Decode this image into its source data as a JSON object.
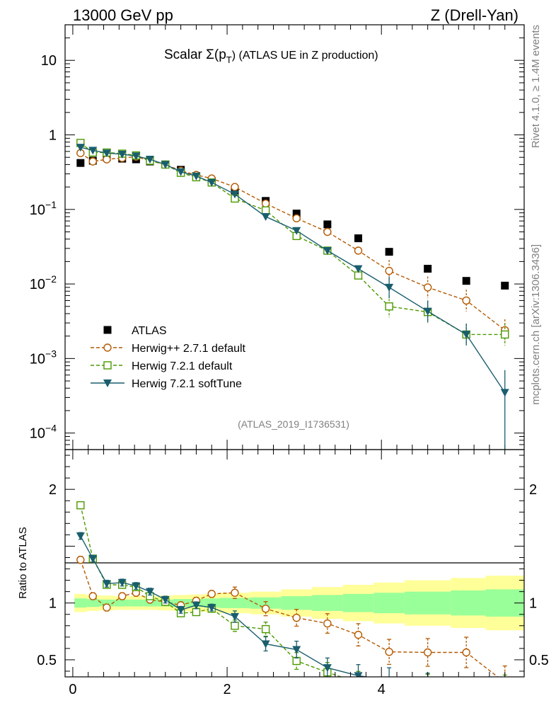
{
  "header": {
    "left": "13000 GeV pp",
    "right": "Z (Drell-Yan)"
  },
  "side_labels": {
    "rivet": "Rivet 4.1.0, ≥ 1.4M events",
    "mcplots": "mcplots.cern.ch [arXiv:1306.3436]"
  },
  "colors": {
    "atlas": "#000000",
    "herwigpp": "#b35900",
    "herwig721": "#4c9900",
    "softtune": "#1a5e6e",
    "band_inner": "#99ff99",
    "band_outer": "#ffff99"
  },
  "chart_data": [
    {
      "type": "scatter",
      "title": "Scalar Σ(pT) (ATLAS UE in Z production)",
      "title_parts": {
        "main": "Scalar Σ(p",
        "sub": "T",
        "rest": ") (ATLAS UE in Z production)"
      },
      "annotation": "(ATLAS_2019_I1736531)",
      "yscale": "log",
      "xlim": [
        -0.1,
        5.85
      ],
      "ylim": [
        6e-05,
        30
      ],
      "yticks": [
        {
          "value": 10,
          "label": "10"
        },
        {
          "value": 1,
          "label": "1"
        },
        {
          "value": 0.1,
          "mant": "10",
          "exp": "−1"
        },
        {
          "value": 0.01,
          "mant": "10",
          "exp": "−2"
        },
        {
          "value": 0.001,
          "mant": "10",
          "exp": "−3"
        },
        {
          "value": 0.0001,
          "mant": "10",
          "exp": "−4"
        }
      ],
      "legend_position": "lower-left",
      "series": [
        {
          "name": "ATLAS",
          "style": "data",
          "x": [
            0.1,
            0.26,
            0.44,
            0.64,
            0.82,
            1.0,
            1.2,
            1.4,
            1.6,
            1.8,
            2.1,
            2.5,
            2.9,
            3.3,
            3.7,
            4.1,
            4.6,
            5.1,
            5.6
          ],
          "y": [
            0.42,
            0.45,
            0.5,
            0.48,
            0.47,
            0.44,
            0.4,
            0.34,
            0.28,
            0.24,
            0.18,
            0.13,
            0.088,
            0.063,
            0.041,
            0.027,
            0.016,
            0.011,
            0.0095
          ],
          "ratio": [
            1,
            1,
            1,
            1,
            1,
            1,
            1,
            1,
            1,
            1,
            1,
            1,
            1,
            1,
            1,
            1,
            1,
            1,
            1
          ]
        },
        {
          "name": "Herwig++ 2.7.1 default",
          "style": "circle",
          "x": [
            0.1,
            0.26,
            0.44,
            0.64,
            0.82,
            1.0,
            1.2,
            1.4,
            1.6,
            1.8,
            2.1,
            2.5,
            2.9,
            3.3,
            3.7,
            4.1,
            4.6,
            5.1,
            5.6
          ],
          "y": [
            0.57,
            0.44,
            0.47,
            0.49,
            0.51,
            0.45,
            0.4,
            0.33,
            0.29,
            0.26,
            0.2,
            0.12,
            0.076,
            0.05,
            0.028,
            0.015,
            0.009,
            0.006,
            0.0024
          ],
          "ratio": [
            1.38,
            1.06,
            0.96,
            1.06,
            1.09,
            1.03,
            1.01,
            0.98,
            1.02,
            1.08,
            1.09,
            0.95,
            0.87,
            0.82,
            0.72,
            0.57,
            0.565,
            0.565,
            0.3
          ]
        },
        {
          "name": "Herwig 7.2.1 default",
          "style": "square",
          "x": [
            0.1,
            0.26,
            0.44,
            0.64,
            0.82,
            1.0,
            1.2,
            1.4,
            1.6,
            1.8,
            2.1,
            2.5,
            2.9,
            3.3,
            3.7,
            4.1,
            4.6,
            5.1,
            5.6
          ],
          "y": [
            0.78,
            0.58,
            0.58,
            0.56,
            0.53,
            0.45,
            0.4,
            0.31,
            0.27,
            0.23,
            0.14,
            0.097,
            0.044,
            0.028,
            0.013,
            0.005,
            0.0042,
            0.0021,
            0.0021
          ],
          "ratio": [
            1.86,
            1.39,
            1.16,
            1.16,
            1.14,
            1.06,
            1.01,
            0.91,
            0.92,
            0.95,
            0.8,
            0.77,
            0.49,
            0.39,
            0.3,
            0.2,
            0.25,
            0.2,
            0.22
          ]
        },
        {
          "name": "Herwig 7.2.1 softTune",
          "style": "triangle",
          "x": [
            0.1,
            0.26,
            0.44,
            0.64,
            0.82,
            1.0,
            1.2,
            1.4,
            1.6,
            1.8,
            2.1,
            2.5,
            2.9,
            3.3,
            3.7,
            4.1,
            4.6,
            5.1,
            5.6
          ],
          "y": [
            0.68,
            0.62,
            0.57,
            0.55,
            0.52,
            0.47,
            0.4,
            0.32,
            0.28,
            0.23,
            0.16,
            0.08,
            0.052,
            0.028,
            0.016,
            0.009,
            0.0043,
            0.0021,
            0.00035
          ],
          "ratio": [
            1.59,
            1.39,
            1.17,
            1.18,
            1.15,
            1.1,
            1.03,
            0.94,
            0.98,
            0.96,
            0.88,
            0.64,
            0.59,
            0.43,
            0.36,
            0.32,
            0.26,
            0.19,
            0.04
          ]
        }
      ]
    },
    {
      "type": "scatter",
      "role": "ratio",
      "ylabel": "Ratio to ATLAS",
      "ylim": [
        0.35,
        2.35
      ],
      "xlim": [
        -0.1,
        5.85
      ],
      "yticks": [
        {
          "value": 2,
          "label": "2"
        },
        {
          "value": 1,
          "label": "1"
        },
        {
          "value": 0.5,
          "label": "0.5"
        }
      ],
      "xticks": [
        {
          "value": 0,
          "label": "0"
        },
        {
          "value": 2,
          "label": "2"
        },
        {
          "value": 4,
          "label": "4"
        }
      ],
      "band_edges": [
        0.02,
        0.18,
        0.34,
        0.54,
        0.74,
        0.91,
        1.1,
        1.3,
        1.5,
        1.7,
        1.9,
        2.3,
        2.7,
        3.1,
        3.5,
        3.9,
        4.3,
        4.9,
        5.35,
        5.85
      ],
      "band_inner": [
        0.04,
        0.035,
        0.03,
        0.03,
        0.03,
        0.03,
        0.03,
        0.035,
        0.035,
        0.04,
        0.045,
        0.05,
        0.06,
        0.07,
        0.08,
        0.09,
        0.1,
        0.11,
        0.12
      ],
      "band_outer": [
        0.08,
        0.07,
        0.065,
        0.06,
        0.06,
        0.06,
        0.065,
        0.07,
        0.075,
        0.08,
        0.09,
        0.1,
        0.12,
        0.14,
        0.16,
        0.18,
        0.2,
        0.22,
        0.24
      ]
    }
  ]
}
